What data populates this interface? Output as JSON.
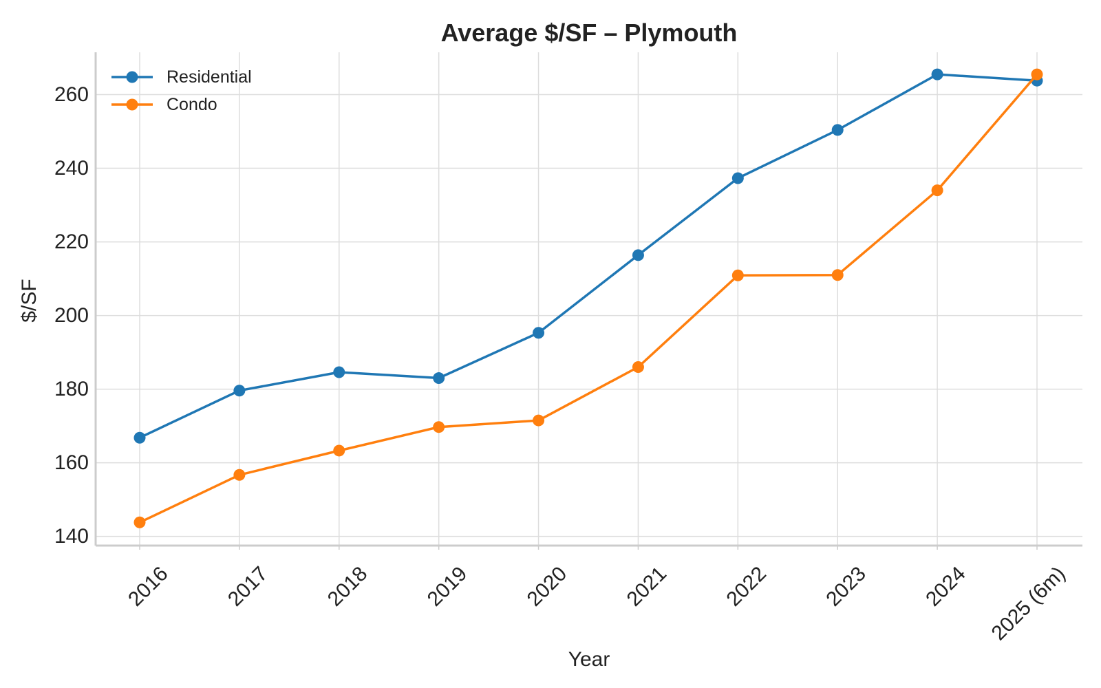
{
  "chart_data": {
    "type": "line",
    "title": "Average $/SF – Plymouth",
    "xlabel": "Year",
    "ylabel": "$/SF",
    "categories": [
      "2016",
      "2017",
      "2018",
      "2019",
      "2020",
      "2021",
      "2022",
      "2023",
      "2024",
      "2025 (6m)"
    ],
    "ylim": [
      137.5,
      271.5
    ],
    "yticks": [
      140,
      160,
      180,
      200,
      220,
      240,
      260
    ],
    "grid": true,
    "legend_position": "top-left",
    "series": [
      {
        "name": "Residential",
        "color": "#1f77b4",
        "values": [
          166.8,
          179.6,
          184.6,
          183.0,
          195.3,
          216.4,
          237.3,
          250.4,
          265.5,
          263.8
        ]
      },
      {
        "name": "Condo",
        "color": "#ff7f0e",
        "values": [
          143.8,
          156.7,
          163.3,
          169.7,
          171.5,
          186.0,
          210.9,
          211.0,
          234.0,
          265.5
        ]
      }
    ]
  }
}
